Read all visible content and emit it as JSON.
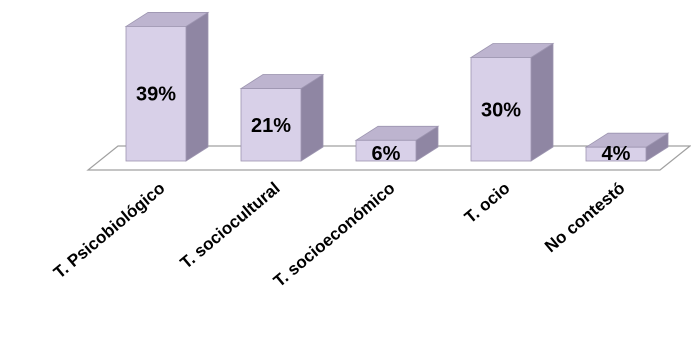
{
  "chart_data": {
    "type": "bar",
    "three_d": true,
    "categories": [
      "T. Psicobiológico",
      "T. sociocultural",
      "T. socioeconómico",
      "T. ocio",
      "No contestó"
    ],
    "values": [
      39,
      21,
      6,
      30,
      4
    ],
    "data_labels": [
      "39%",
      "21%",
      "6%",
      "30%",
      "4%"
    ],
    "title": "",
    "xlabel": "",
    "ylabel": "",
    "ylim": [
      0,
      40
    ],
    "grid": false,
    "legend": "none",
    "colors": {
      "bar_front": "#d8d0e8",
      "bar_side": "#8f86a3",
      "bar_top": "#bdb4cf",
      "bar_edge": "#9d95b0",
      "floor_edge": "#a0a0a0"
    }
  }
}
